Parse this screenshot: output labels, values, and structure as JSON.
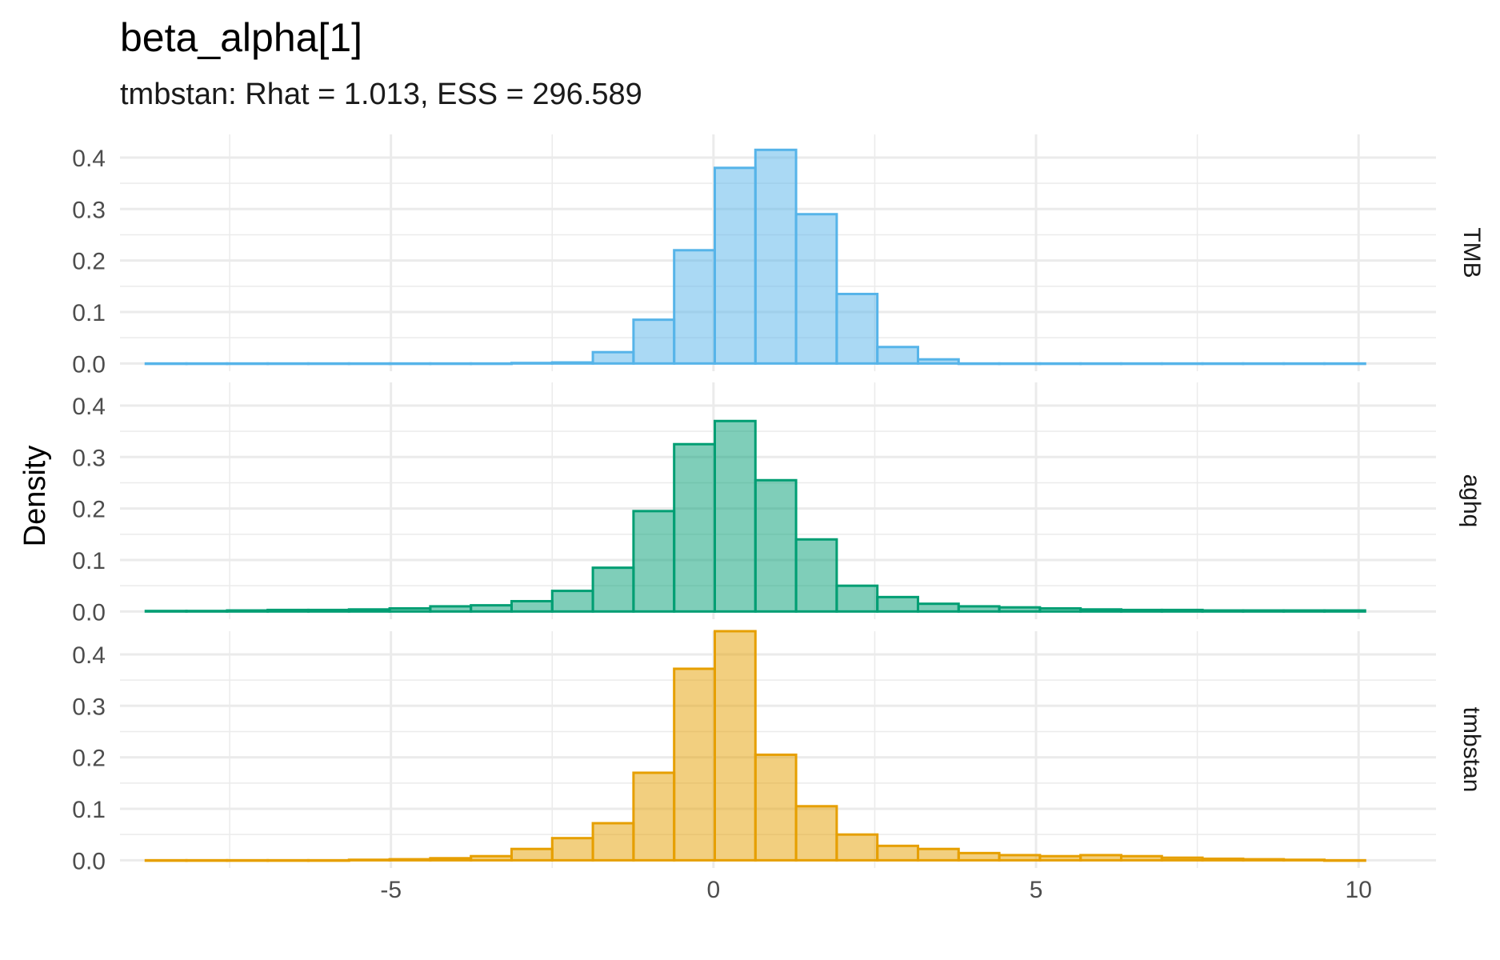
{
  "chart_data": {
    "type": "bar",
    "title": "beta_alpha[1]",
    "subtitle": "tmbstan: Rhat = 1.013, ESS = 296.589",
    "xlabel": "",
    "ylabel": "Density",
    "xlim": [
      -9.2,
      11.2
    ],
    "ylim": [
      -0.015,
      0.445
    ],
    "x_ticks": [
      -5,
      0,
      5,
      10
    ],
    "x_tick_labels": [
      "-5",
      "0",
      "5",
      "10"
    ],
    "y_ticks": [
      0.0,
      0.1,
      0.2,
      0.3,
      0.4
    ],
    "y_tick_labels": [
      "0.0",
      "0.1",
      "0.2",
      "0.3",
      "0.4"
    ],
    "grid": true,
    "bin_edges": [
      -8.8,
      -8.17,
      -7.54,
      -6.91,
      -6.28,
      -5.65,
      -5.02,
      -4.39,
      -3.76,
      -3.13,
      -2.5,
      -1.87,
      -1.24,
      -0.61,
      0.02,
      0.65,
      1.28,
      1.91,
      2.54,
      3.17,
      3.8,
      4.43,
      5.06,
      5.69,
      6.32,
      6.95,
      7.58,
      8.21,
      8.84,
      9.47,
      10.1
    ],
    "series": [
      {
        "name": "TMB",
        "color": "#56B4E9",
        "values": [
          0,
          0,
          0,
          0,
          0,
          0,
          0,
          0,
          0,
          0.001,
          0.002,
          0.022,
          0.085,
          0.22,
          0.38,
          0.415,
          0.29,
          0.135,
          0.032,
          0.008,
          0,
          0,
          0,
          0,
          0,
          0,
          0,
          0,
          0,
          0
        ]
      },
      {
        "name": "aghq",
        "color": "#009E73",
        "values": [
          0.001,
          0.001,
          0.002,
          0.003,
          0.003,
          0.004,
          0.006,
          0.01,
          0.012,
          0.02,
          0.04,
          0.085,
          0.195,
          0.325,
          0.37,
          0.255,
          0.14,
          0.05,
          0.028,
          0.015,
          0.01,
          0.008,
          0.006,
          0.004,
          0.003,
          0.003,
          0.002,
          0.002,
          0.002,
          0.002
        ]
      },
      {
        "name": "tmbstan",
        "color": "#E69F00",
        "values": [
          0,
          0,
          0,
          0,
          0,
          0.001,
          0.002,
          0.004,
          0.008,
          0.022,
          0.043,
          0.072,
          0.17,
          0.372,
          0.445,
          0.205,
          0.105,
          0.05,
          0.028,
          0.022,
          0.014,
          0.01,
          0.008,
          0.01,
          0.008,
          0.005,
          0.003,
          0.002,
          0.001,
          0
        ]
      }
    ]
  }
}
